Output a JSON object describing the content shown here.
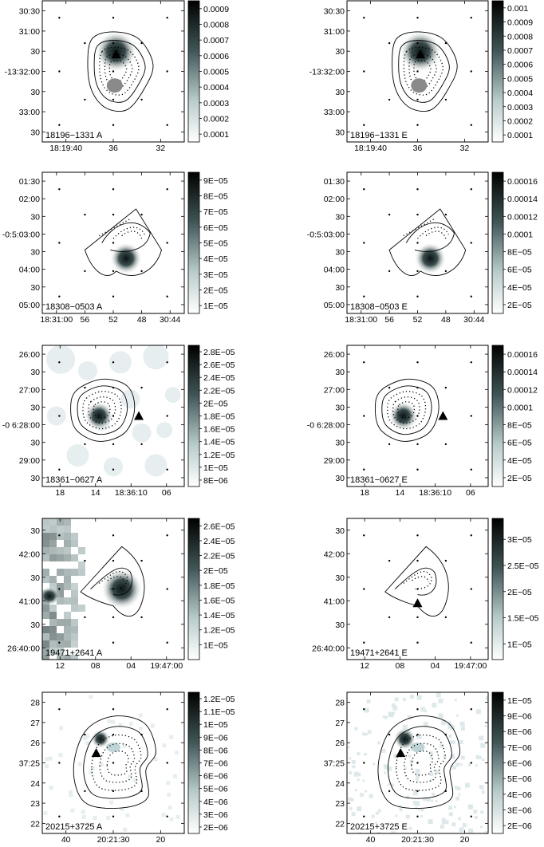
{
  "chart_data": [
    {
      "type": "heatmap",
      "label": "18196−1331  A",
      "y_ticks": [
        "30:30",
        "31:00",
        "30",
        "-13:32:00",
        "30",
        "33:00",
        "30"
      ],
      "x_ticks": [
        "18:19:40",
        "36",
        "32"
      ],
      "colorbar_ticks": [
        "0.0009",
        "0.0008",
        "0.0007",
        "0.0006",
        "0.0005",
        "0.0004",
        "0.0003",
        "0.0002",
        "0.0001"
      ],
      "colorbar_range": [
        5e-05,
        0.00095
      ],
      "marker": "triangle",
      "dark_blob_only": true,
      "contours": "irregular-oval",
      "grey_blob": true,
      "background": "none"
    },
    {
      "type": "heatmap",
      "label": "18196−1331  E",
      "y_ticks": [
        "30:30",
        "31:00",
        "30",
        "-13:32:00",
        "30",
        "33:00",
        "30"
      ],
      "x_ticks": [
        "18:19:40",
        "36",
        "32"
      ],
      "colorbar_ticks": [
        "0.001",
        "0.0009",
        "0.0008",
        "0.0007",
        "0.0006",
        "0.0005",
        "0.0004",
        "0.0003",
        "0.0002",
        "0.0001"
      ],
      "colorbar_range": [
        5e-05,
        0.00105
      ],
      "marker": "triangle",
      "contours": "irregular-oval",
      "grey_blob": true,
      "background": "none"
    },
    {
      "type": "heatmap",
      "label": "18308−0503  A",
      "y_ticks": [
        "01:30",
        "02:00",
        "30",
        "-0:5:03:00",
        "30",
        "04:00",
        "30",
        "05:00"
      ],
      "x_ticks": [
        "18:31:00",
        "56",
        "52",
        "48",
        "30:44"
      ],
      "colorbar_ticks": [
        "9E−05",
        "8E−05",
        "7E−05",
        "6E−05",
        "5E−05",
        "4E−05",
        "3E−05",
        "2E−05",
        "1E−05"
      ],
      "colorbar_range": [
        5e-06,
        9.5e-05
      ],
      "contours": "wedge",
      "background": "none"
    },
    {
      "type": "heatmap",
      "label": "18308−0503  E",
      "y_ticks": [
        "01:30",
        "02:00",
        "30",
        "-0:5:03:00",
        "30",
        "04:00",
        "30",
        "05:00"
      ],
      "x_ticks": [
        "18:31:00",
        "56",
        "52",
        "48",
        "30:44"
      ],
      "colorbar_ticks": [
        "0.00016",
        "0.00014",
        "0.00012",
        "0.0001",
        "8E−05",
        "6E−05",
        "4E−05",
        "2E−05"
      ],
      "colorbar_range": [
        1e-05,
        0.00017
      ],
      "contours": "wedge",
      "background": "none"
    },
    {
      "type": "heatmap",
      "label": "18361−0627  A",
      "y_ticks": [
        "26:00",
        "30",
        "27:00",
        "30",
        "-0 6:28:00",
        "30",
        "29:00",
        "30"
      ],
      "x_ticks": [
        "18",
        "14",
        "18:36:10",
        "06"
      ],
      "colorbar_ticks": [
        "2.8E−05",
        "2.6E−05",
        "2.4E−05",
        "2.2E−05",
        "2E−05",
        "1.8E−05",
        "1.6E−05",
        "1.4E−05",
        "1.2E−05",
        "1E−05",
        "8E−06"
      ],
      "colorbar_range": [
        7e-06,
        2.9e-05
      ],
      "marker": "triangle",
      "contours": "rounded-nest",
      "background": "patchy"
    },
    {
      "type": "heatmap",
      "label": "18361−0627  E",
      "y_ticks": [
        "26:00",
        "30",
        "27:00",
        "30",
        "-0 6:28:00",
        "30",
        "29:00",
        "30"
      ],
      "x_ticks": [
        "18",
        "14",
        "18:36:10",
        "06"
      ],
      "colorbar_ticks": [
        "0.00016",
        "0.00014",
        "0.00012",
        "0.0001",
        "8E−05",
        "6E−05",
        "4E−05",
        "2E−05"
      ],
      "colorbar_range": [
        1e-05,
        0.00017
      ],
      "marker": "triangle",
      "contours": "rounded-nest",
      "background": "none"
    },
    {
      "type": "heatmap",
      "label": "19471+2641  A",
      "y_ticks": [
        "30",
        "42:00",
        "30",
        "41:00",
        "30",
        "26:40:00"
      ],
      "x_ticks": [
        "12",
        "08",
        "04",
        "19:47:00"
      ],
      "colorbar_ticks": [
        "2.6E−05",
        "2.4E−05",
        "2.2E−05",
        "2E−05",
        "1.8E−05",
        "1.6E−05",
        "1.4E−05",
        "1.2E−05",
        "1E−05"
      ],
      "colorbar_range": [
        8e-06,
        2.7e-05
      ],
      "contours": "cone",
      "background": "blocky-left"
    },
    {
      "type": "heatmap",
      "label": "19471+2641  E",
      "y_ticks": [
        "30",
        "42:00",
        "30",
        "41:00",
        "30",
        "26:40:00"
      ],
      "x_ticks": [
        "12",
        "08",
        "04",
        "19:47:00"
      ],
      "colorbar_ticks": [
        "3E−05",
        "2.5E−05",
        "2E−05",
        "1.5E−05",
        "1E−05"
      ],
      "colorbar_range": [
        7e-06,
        3.4e-05
      ],
      "marker": "triangle",
      "contours": "cone",
      "background": "none"
    },
    {
      "type": "heatmap",
      "label": "20215+3725  A",
      "y_ticks": [
        "28",
        "27",
        "26",
        "37:25",
        "24",
        "23",
        "22"
      ],
      "x_ticks": [
        "40",
        "20:21:30",
        "20"
      ],
      "colorbar_ticks": [
        "1.2E−05",
        "1.1E−05",
        "1E−05",
        "9E−06",
        "8E−06",
        "7E−06",
        "6E−06",
        "5E−06",
        "4E−06",
        "3E−06",
        "2E−06"
      ],
      "colorbar_range": [
        1.5e-06,
        1.25e-05
      ],
      "marker": "triangle",
      "contours": "double-lobe",
      "background": "faint"
    },
    {
      "type": "heatmap",
      "label": "20215+3725  E",
      "y_ticks": [
        "28",
        "27",
        "26",
        "37:25",
        "24",
        "23",
        "22"
      ],
      "x_ticks": [
        "40",
        "20:21:30",
        "20"
      ],
      "colorbar_ticks": [
        "1E−05",
        "9E−06",
        "8E−06",
        "7E−06",
        "6E−06",
        "5E−06",
        "4E−06",
        "3E−06",
        "2E−06"
      ],
      "colorbar_range": [
        1.5e-06,
        1.05e-05
      ],
      "marker": "triangle",
      "contours": "double-lobe",
      "background": "noisy"
    }
  ]
}
